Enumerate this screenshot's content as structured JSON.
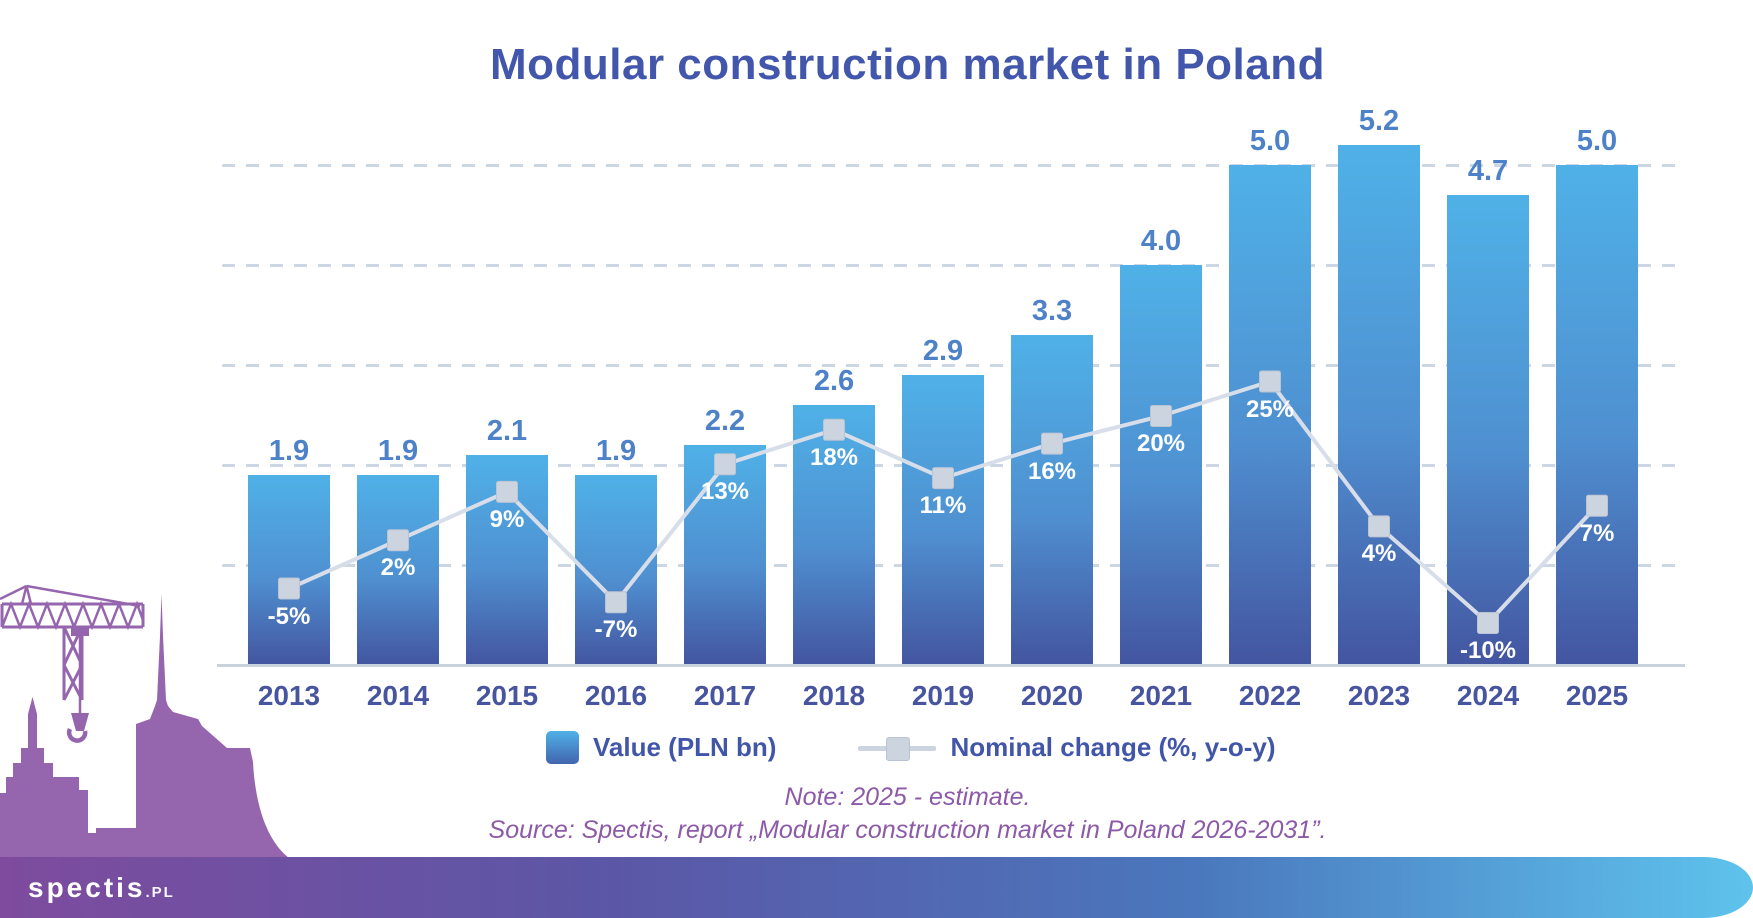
{
  "title": "Modular construction market in Poland",
  "chart_data": {
    "type": "bar",
    "title": "Modular construction market in Poland",
    "categories": [
      "2013",
      "2014",
      "2015",
      "2016",
      "2017",
      "2018",
      "2019",
      "2020",
      "2021",
      "2022",
      "2023",
      "2024",
      "2025"
    ],
    "series": [
      {
        "name": "Value (PLN bn)",
        "type": "bar",
        "values": [
          1.9,
          1.9,
          2.1,
          1.9,
          2.2,
          2.6,
          2.9,
          3.3,
          4.0,
          5.0,
          5.2,
          4.7,
          5.0
        ],
        "labels": [
          "1.9",
          "1.9",
          "2.1",
          "1.9",
          "2.2",
          "2.6",
          "2.9",
          "3.3",
          "4.0",
          "5.0",
          "5.2",
          "4.7",
          "5.0"
        ]
      },
      {
        "name": "Nominal change (%, y-o-y)",
        "type": "line",
        "values": [
          -5,
          2,
          9,
          -7,
          13,
          18,
          11,
          16,
          20,
          25,
          4,
          -10,
          7
        ],
        "labels": [
          "-5%",
          "2%",
          "9%",
          "-7%",
          "13%",
          "18%",
          "11%",
          "16%",
          "20%",
          "25%",
          "4%",
          "-10%",
          "7%"
        ]
      }
    ],
    "xlabel": "",
    "ylabel": "",
    "ylim": [
      0,
      5.5
    ],
    "gridline_values": [
      1,
      2,
      3,
      4,
      5
    ],
    "grid": "dashed horizontal, no axis tick labels",
    "legend_position": "bottom"
  },
  "legend": {
    "bar_label": "Value (PLN bn)",
    "line_label": "Nominal change (%, y-o-y)"
  },
  "note": "Note: 2025 - estimate.",
  "source": "Source: Spectis, report „Modular construction market in Poland 2026-2031”.",
  "footer": {
    "logo_text": "spectis",
    "logo_suffix": ".PL"
  },
  "colors": {
    "bar_top": "#4fb1e7",
    "bar_bottom": "#4355a0",
    "trend_line": "#d8dee9",
    "marker_fill": "#ccd4e0",
    "marker_border": "#b9c3d2",
    "grid": "#cdd7e4",
    "title_text": "#4257ac",
    "year_text": "#47549f",
    "value_text": "#4e82c8",
    "pct_text": "#ffffff",
    "note_text": "#8d5aa8",
    "skyline": "#9565ae",
    "footer_gradient": [
      "#7e4b9e",
      "#5b57a6",
      "#4a77bd",
      "#5ec3ed"
    ]
  }
}
